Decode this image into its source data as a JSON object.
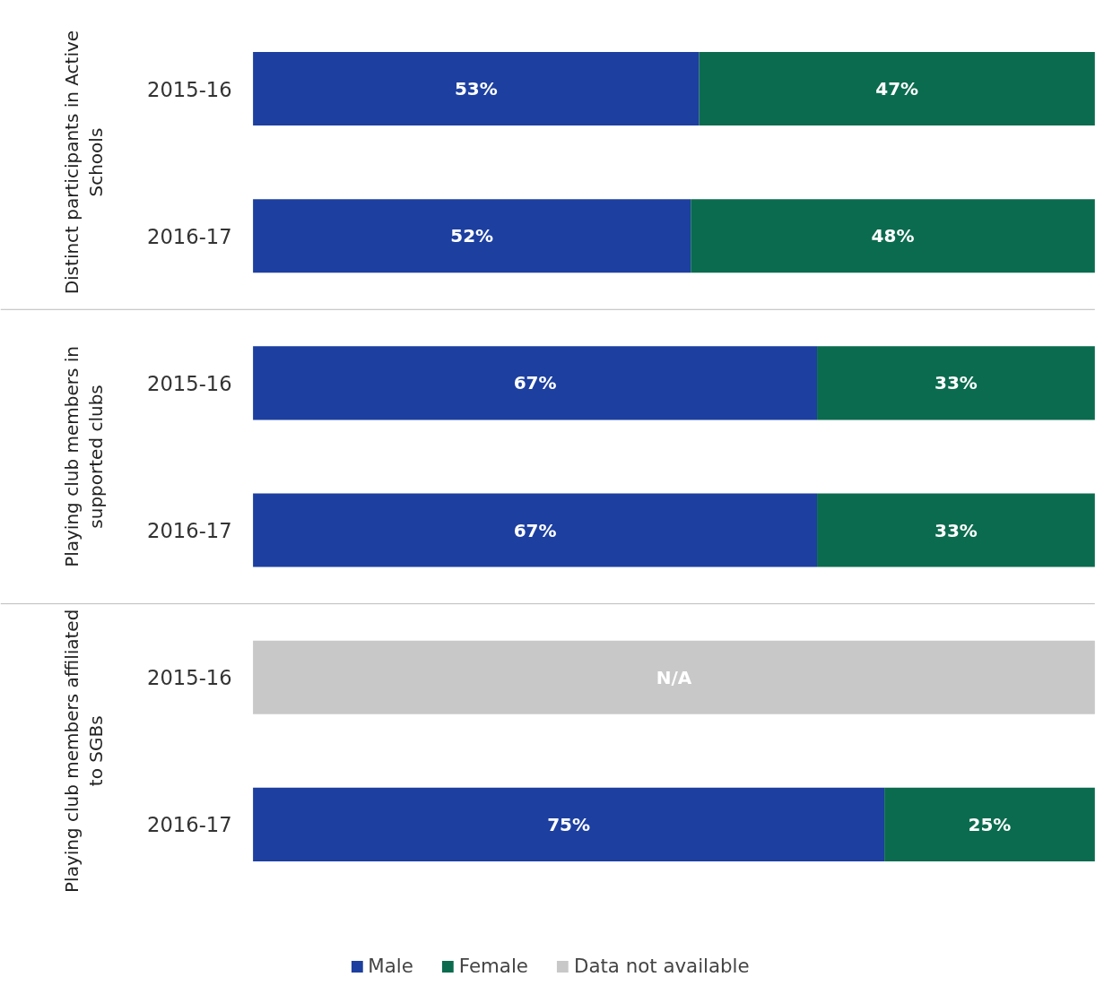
{
  "chart_data": {
    "type": "bar",
    "orientation": "horizontal",
    "stacked": true,
    "categories": [
      "2015-16",
      "2016-17",
      "2015-16",
      "2016-17",
      "2015-16",
      "2016-17"
    ],
    "annotations": [
      "Distinct participants in Active Schools",
      "Playing club members in supported clubs",
      "Playing club members affiliated to SGBs"
    ],
    "xlim": [
      0,
      100
    ],
    "tick_labels": "y",
    "grid": false,
    "legend": "bottom",
    "series": [
      {
        "name": "Male",
        "color": "#1c3fa0",
        "values": [
          53,
          52,
          67,
          67,
          null,
          75
        ],
        "value_labels": [
          "53%",
          "52%",
          "67%",
          "67%",
          null,
          "75%"
        ]
      },
      {
        "name": "Female",
        "color": "#0b6b4e",
        "values": [
          47,
          48,
          33,
          33,
          null,
          25
        ],
        "value_labels": [
          "47%",
          "48%",
          "33%",
          "33%",
          null,
          "25%"
        ]
      },
      {
        "name": "Data not available",
        "color": "#c8c8c8",
        "values": [
          null,
          null,
          null,
          null,
          100,
          null
        ],
        "value_labels": [
          null,
          null,
          null,
          null,
          "N/A",
          null
        ]
      }
    ]
  }
}
